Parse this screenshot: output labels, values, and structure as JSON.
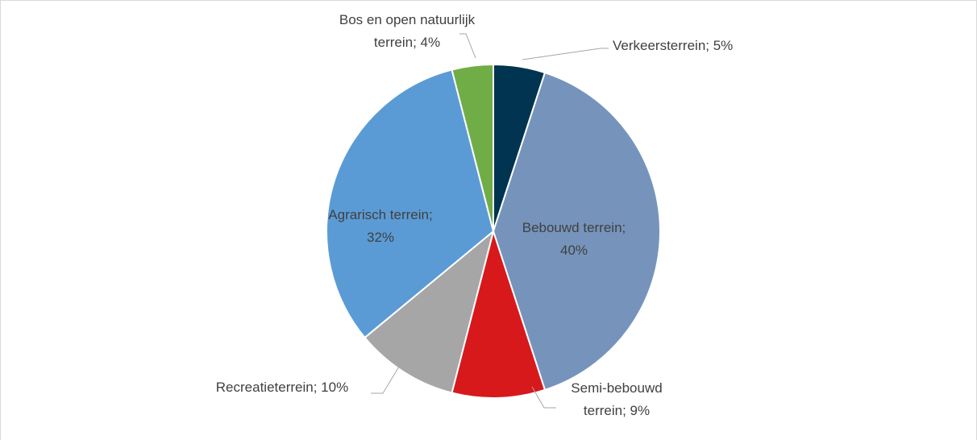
{
  "chart_data": {
    "type": "pie",
    "values": [
      5,
      40,
      9,
      10,
      32,
      4
    ],
    "value_labels": [
      "Verkeersterrein; 5%",
      "Bebouwd terrein;\n40%",
      "Semi-bebouwd\nterrein; 9%",
      "Recreatieterrein; 10%",
      "Agrarisch terrein;\n32%",
      "Bos en open natuurlijk\nterrein; 4%"
    ],
    "colors": [
      "#003450",
      "#7694bb",
      "#d7191c",
      "#a6a6a6",
      "#5b9bd5",
      "#70ad47"
    ]
  }
}
